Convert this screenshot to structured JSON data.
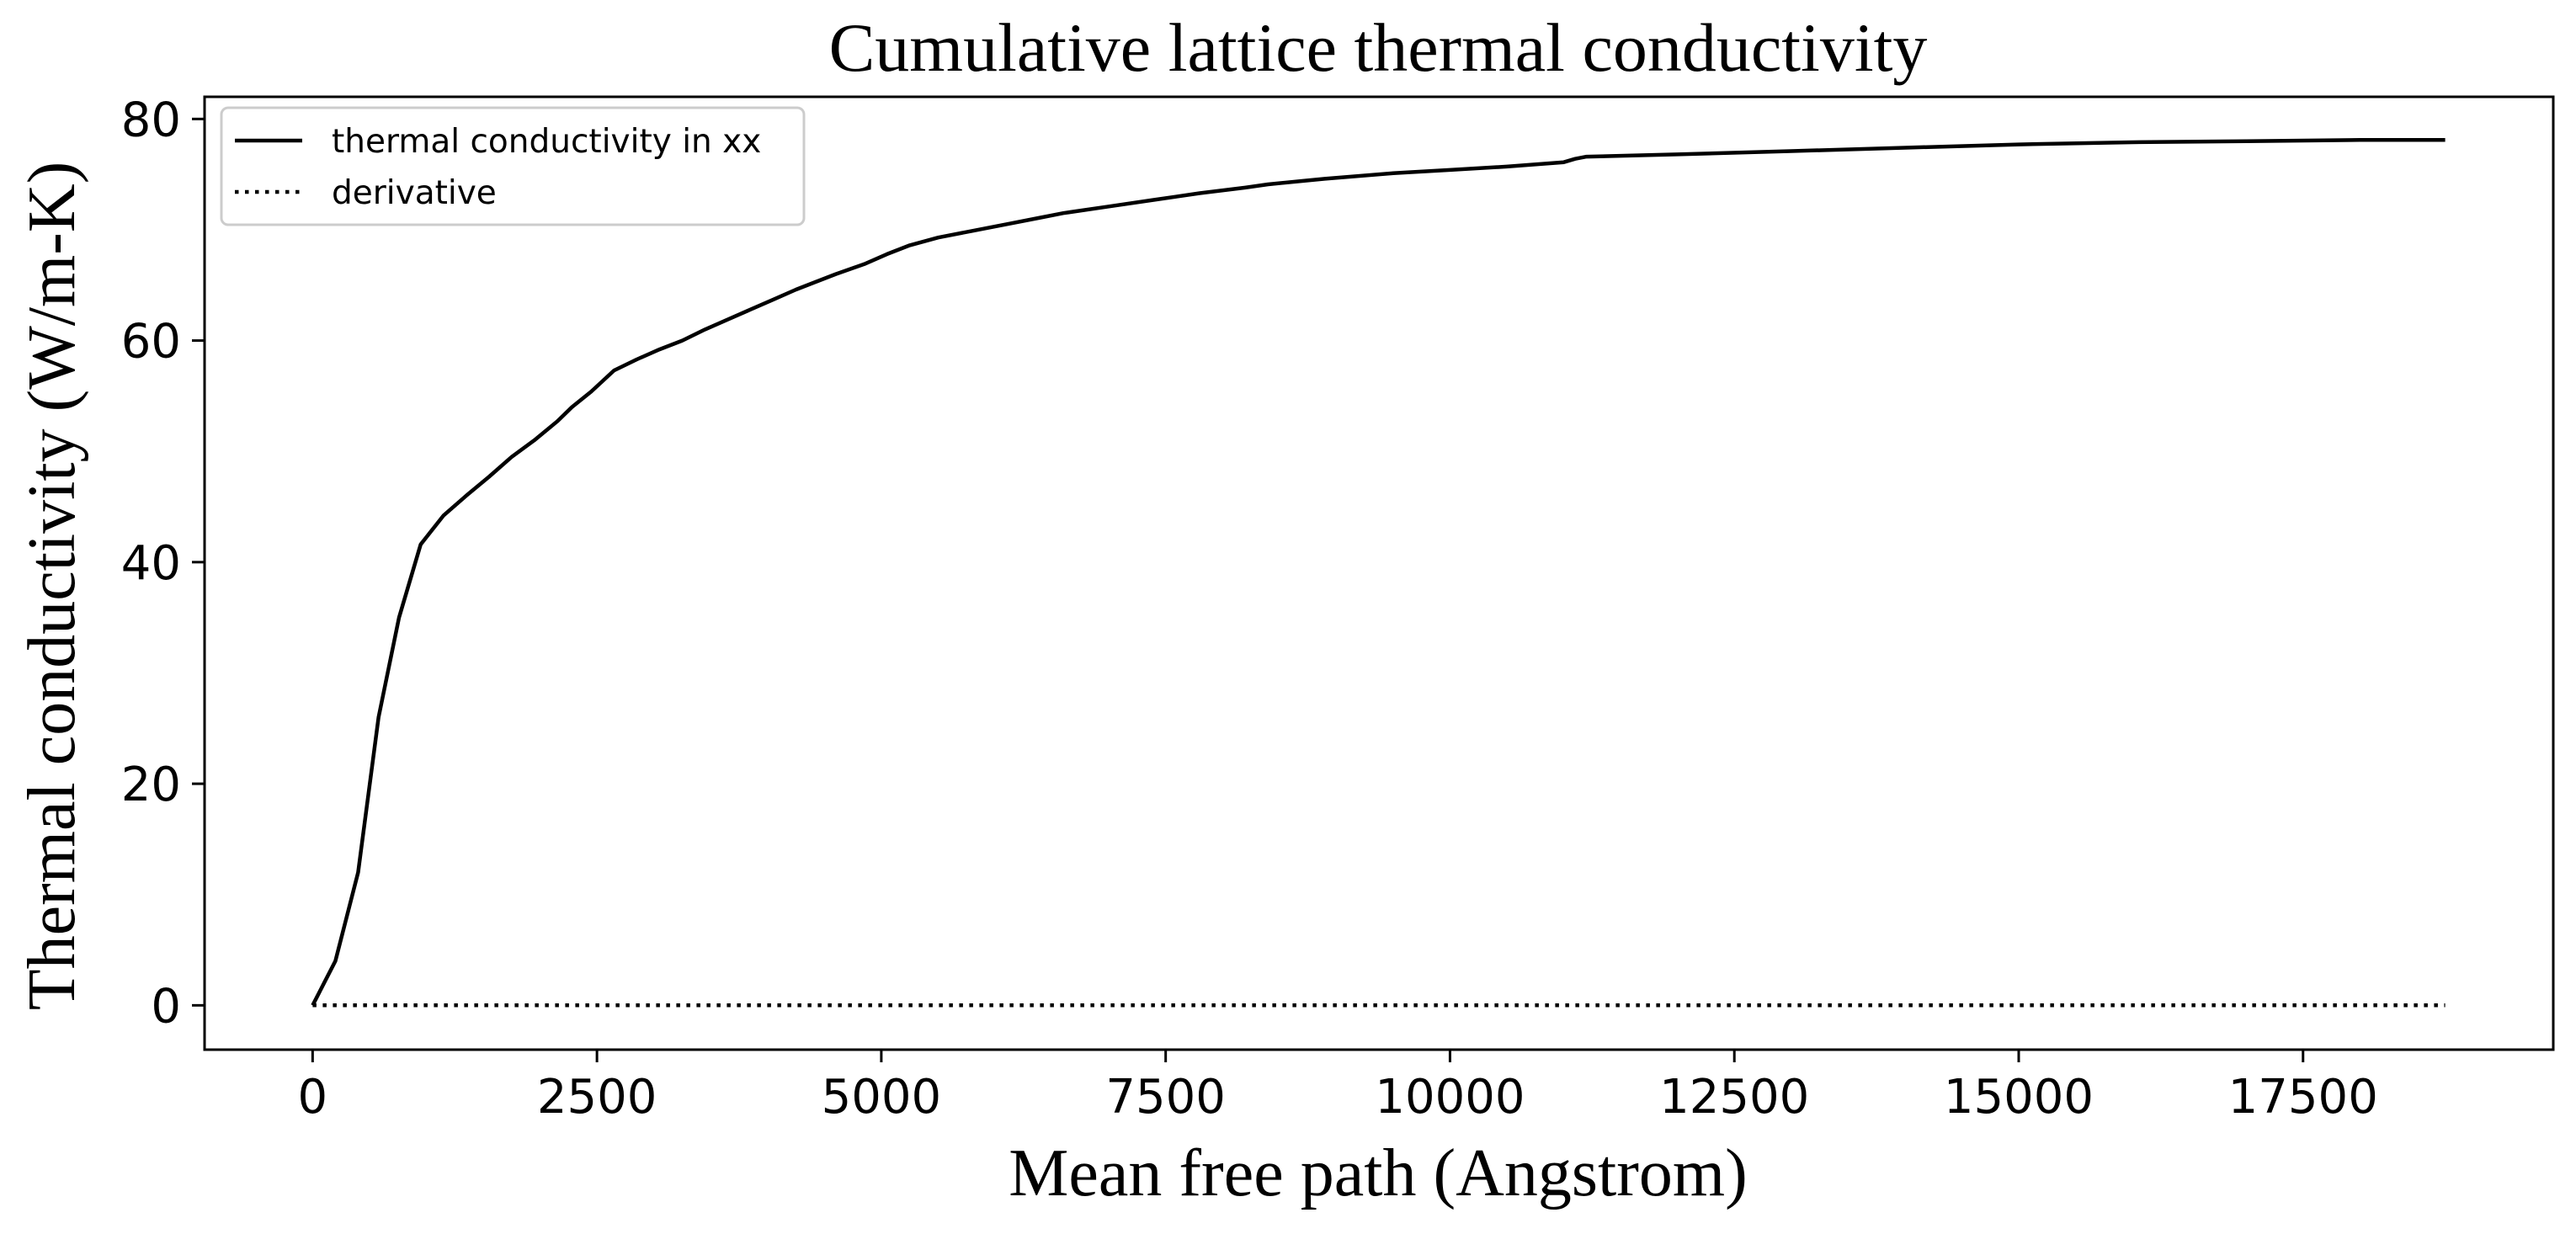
{
  "chart_data": {
    "type": "line",
    "title": "Cumulative lattice thermal conductivity",
    "xlabel": "Mean free path (Angstrom)",
    "ylabel": "Thermal conductivity (W/m-K)",
    "xlim": [
      -950,
      19700
    ],
    "ylim": [
      -4,
      82
    ],
    "xticks": [
      0,
      2500,
      5000,
      7500,
      10000,
      12500,
      15000,
      17500
    ],
    "xtick_labels": [
      "0",
      "2500",
      "5000",
      "7500",
      "10000",
      "12500",
      "15000",
      "17500"
    ],
    "yticks": [
      0,
      20,
      40,
      60,
      80
    ],
    "ytick_labels": [
      "0",
      "20",
      "40",
      "60",
      "80"
    ],
    "grid": false,
    "legend": "upper-left",
    "colors": {
      "line": "#000000",
      "frame": "#000000",
      "legend_border": "#cccccc"
    },
    "series": [
      {
        "name": "thermal conductivity in xx",
        "style": "solid",
        "x": [
          0,
          200,
          400,
          580,
          760,
          950,
          1150,
          1350,
          1550,
          1750,
          1950,
          2150,
          2280,
          2450,
          2650,
          2850,
          3050,
          3250,
          3450,
          3650,
          3850,
          4050,
          4250,
          4400,
          4600,
          4850,
          5050,
          5250,
          5500,
          5800,
          6100,
          6400,
          6600,
          7000,
          7400,
          7800,
          8200,
          8400,
          8700,
          8900,
          9500,
          10000,
          10500,
          11000,
          11100,
          11200,
          12000,
          13000,
          14000,
          15000,
          16000,
          17000,
          18000,
          18750
        ],
        "y": [
          0,
          4,
          12,
          26,
          35,
          41.6,
          44.2,
          46,
          47.7,
          49.5,
          51,
          52.7,
          54,
          55.4,
          57.3,
          58.3,
          59.2,
          60,
          61,
          61.9,
          62.8,
          63.7,
          64.6,
          65.2,
          66,
          66.9,
          67.8,
          68.6,
          69.3,
          69.9,
          70.5,
          71.1,
          71.5,
          72.1,
          72.7,
          73.3,
          73.8,
          74.1,
          74.4,
          74.6,
          75.1,
          75.4,
          75.7,
          76.1,
          76.4,
          76.6,
          76.8,
          77.1,
          77.4,
          77.7,
          77.9,
          78,
          78.1,
          78.1
        ]
      },
      {
        "name": "derivative",
        "style": "dotted",
        "x": [
          0,
          18750
        ],
        "y": [
          0,
          0
        ]
      }
    ]
  }
}
